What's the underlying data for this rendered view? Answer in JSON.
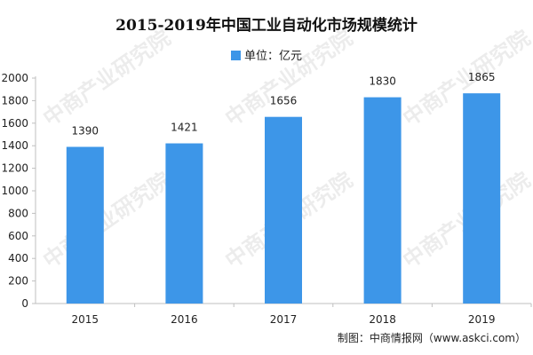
{
  "watermark": "中商产业研究院",
  "source": "制图：中商情报网（www.askci.com）",
  "chart_data": {
    "type": "bar",
    "title": "2015-2019年中国工业自动化市场规模统计",
    "legend": [
      "单位：亿元"
    ],
    "categories": [
      "2015",
      "2016",
      "2017",
      "2018",
      "2019"
    ],
    "series": [
      {
        "name": "单位：亿元",
        "values": [
          1390,
          1421,
          1656,
          1830,
          1865
        ]
      }
    ],
    "yticks": [
      0,
      200,
      400,
      600,
      800,
      1000,
      1200,
      1400,
      1600,
      1800,
      2000
    ],
    "ylim": [
      0,
      2000
    ],
    "grid": false,
    "legend_position": "top-center",
    "bar_color": "#3d96e8"
  }
}
